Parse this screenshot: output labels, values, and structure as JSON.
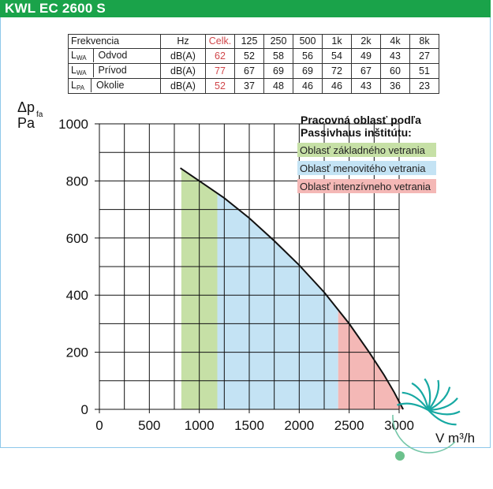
{
  "header": {
    "title": "KWL EC 2600 S"
  },
  "spec_table": {
    "columns": [
      "Frekvencia",
      "Hz",
      "Celk.",
      "125",
      "250",
      "500",
      "1k",
      "2k",
      "4k",
      "8k"
    ],
    "rows": [
      {
        "sym": "L",
        "sub": "WA",
        "name": "Odvod",
        "unit": "dB(A)",
        "total": "62",
        "values": [
          "52",
          "58",
          "56",
          "54",
          "49",
          "43",
          "27"
        ]
      },
      {
        "sym": "L",
        "sub": "WA",
        "name": "Prívod",
        "unit": "dB(A)",
        "total": "77",
        "values": [
          "67",
          "69",
          "69",
          "72",
          "67",
          "60",
          "51"
        ]
      },
      {
        "sym": "L",
        "sub": "PA",
        "name": "Okolie",
        "unit": "dB(A)",
        "total": "52",
        "values": [
          "37",
          "48",
          "46",
          "46",
          "43",
          "36",
          "23"
        ]
      }
    ]
  },
  "chart_data": {
    "type": "line",
    "xlabel": "V m³/h",
    "ylabel_main": "Δp",
    "ylabel_sub": "fa",
    "ylabel_unit": "Pa",
    "xlim": [
      0,
      3000
    ],
    "ylim": [
      0,
      1000
    ],
    "x_ticks": [
      "0",
      "500",
      "1000",
      "1500",
      "2000",
      "2500",
      "3000"
    ],
    "y_ticks": [
      "0",
      "200",
      "400",
      "600",
      "800",
      "1000"
    ],
    "curve": {
      "x": [
        810,
        1000,
        1250,
        1500,
        1750,
        2000,
        2250,
        2500,
        2700,
        2850,
        2950,
        3040
      ],
      "y": [
        845,
        800,
        740,
        670,
        590,
        505,
        410,
        300,
        200,
        120,
        60,
        0
      ]
    },
    "bands": [
      {
        "label": "Oblasť základného vetrania",
        "x0": 820,
        "x1": 1180,
        "color": "#c6e0a6"
      },
      {
        "label": "Oblasť menovitého vetrania",
        "x0": 1180,
        "x1": 2390,
        "color": "#c4e3f4"
      },
      {
        "label": "Oblasť intenzívneho vetrania",
        "x0": 2390,
        "x1": 3040,
        "color": "#f4b8b6"
      }
    ],
    "legend": {
      "title_line1": "Pracovná oblasť podľa",
      "title_line2": "Passivhaus inštitútu:",
      "position": "top-right"
    },
    "grid": true,
    "logo": "passivhaus-logo"
  }
}
